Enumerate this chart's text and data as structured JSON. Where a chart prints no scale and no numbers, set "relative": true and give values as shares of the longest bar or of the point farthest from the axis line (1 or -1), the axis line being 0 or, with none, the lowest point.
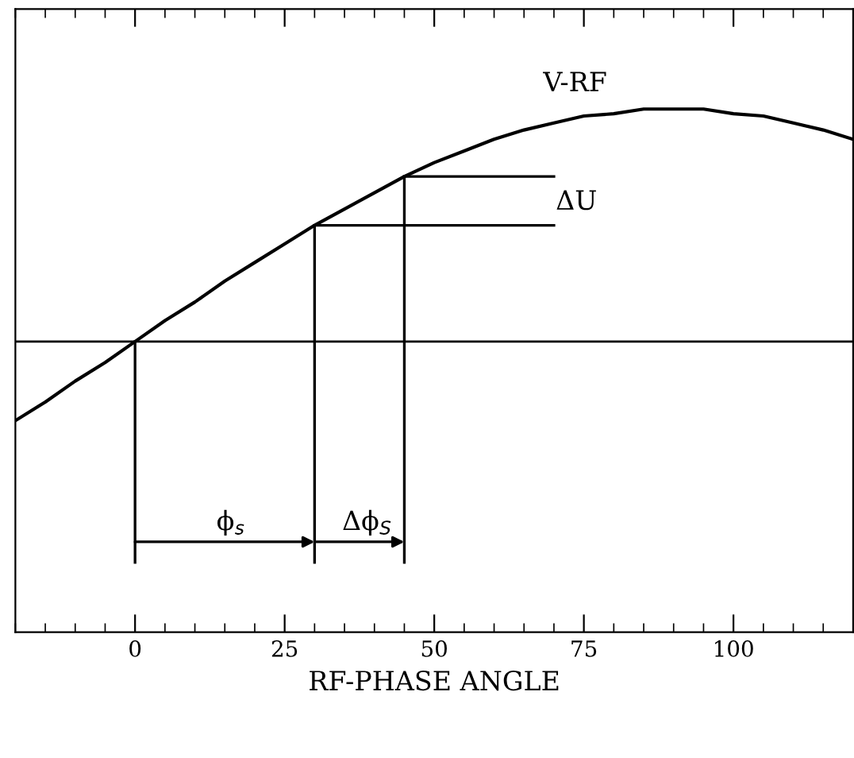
{
  "chart_data": {
    "type": "line",
    "relative": true,
    "xlabel": "RF-PHASE ANGLE",
    "xlim": [
      -20,
      120
    ],
    "xticks": [
      0,
      25,
      50,
      75,
      100
    ],
    "series": [
      {
        "color": "#000000",
        "x": [
          -20,
          -15,
          -10,
          -5,
          0,
          5,
          10,
          15,
          20,
          25,
          30,
          35,
          40,
          45,
          50,
          55,
          60,
          65,
          70,
          75,
          80,
          85,
          90,
          95,
          100,
          105,
          110,
          115,
          120
        ],
        "values": [
          -0.34,
          -0.26,
          -0.17,
          -0.09,
          0,
          0.09,
          0.17,
          0.26,
          0.34,
          0.42,
          0.5,
          0.57,
          0.64,
          0.71,
          0.77,
          0.82,
          0.87,
          0.91,
          0.94,
          0.97,
          0.98,
          1.0,
          1.0,
          1.0,
          0.98,
          0.97,
          0.94,
          0.91,
          0.87
        ]
      },
      {
        "color": "#000000",
        "x": [
          0,
          0
        ],
        "values": [
          -0.95,
          0
        ]
      },
      {
        "color": "#000000",
        "x": [
          30,
          30
        ],
        "values": [
          -0.95,
          0.5
        ]
      },
      {
        "color": "#000000",
        "x": [
          45,
          45
        ],
        "values": [
          -0.95,
          0.71
        ]
      },
      {
        "color": "#000000",
        "x": [
          30,
          70
        ],
        "values": [
          0.5,
          0.5
        ]
      },
      {
        "color": "#000000",
        "x": [
          45,
          70
        ],
        "values": [
          0.71,
          0.71
        ]
      }
    ],
    "ref_lines": [
      {
        "axis": "y",
        "value": 0
      }
    ],
    "annotations": [
      "V-RF",
      "ΔU",
      "ϕ$_{s}$",
      "Δϕ$_{S}$"
    ],
    "marker": "none",
    "line_style": "solid"
  }
}
